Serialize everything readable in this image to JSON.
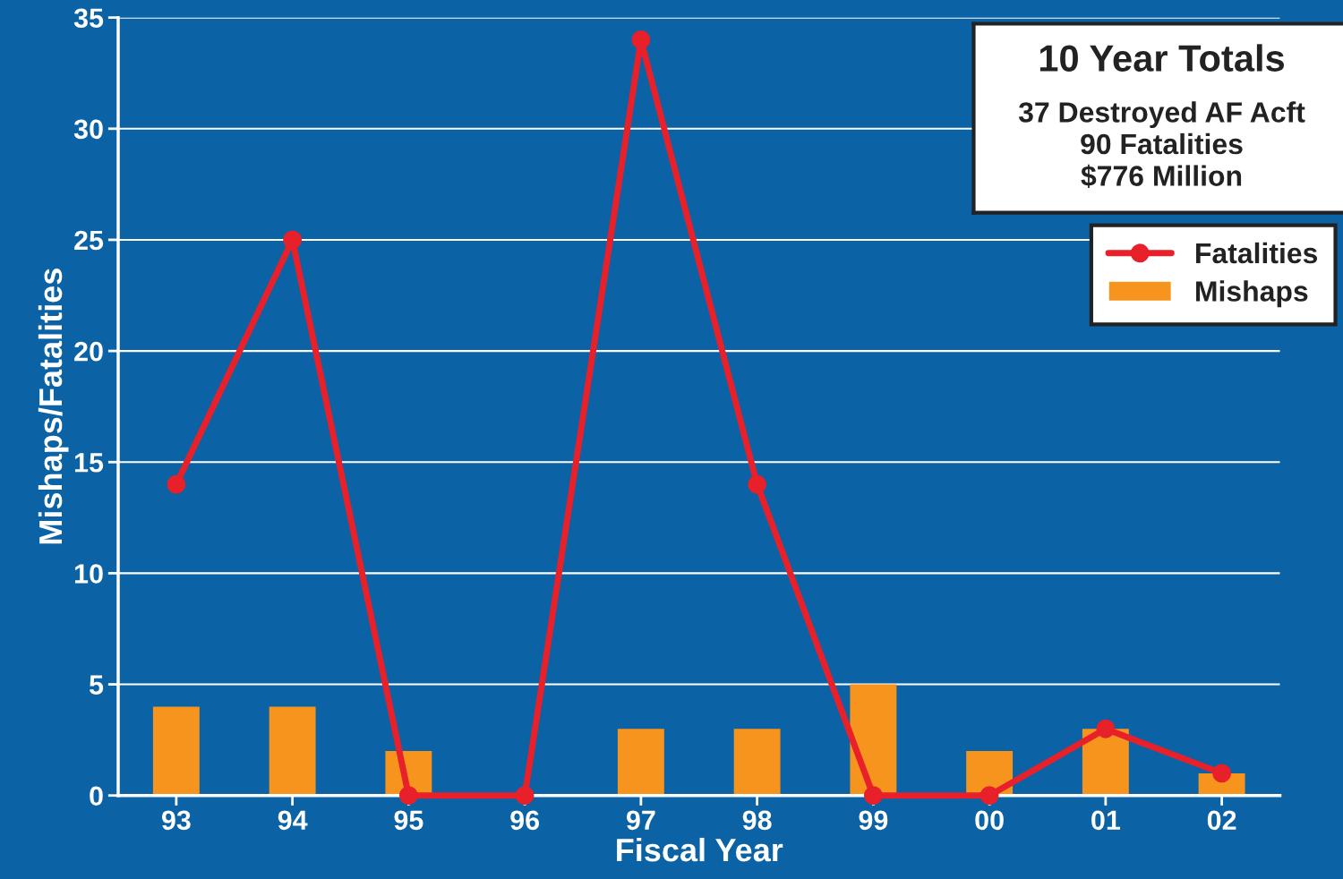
{
  "chart_data": {
    "type": "bar",
    "xlabel": "Fiscal Year",
    "ylabel": "Mishaps/Fatalities",
    "categories": [
      "93",
      "94",
      "95",
      "96",
      "97",
      "98",
      "99",
      "00",
      "01",
      "02"
    ],
    "series": [
      {
        "name": "Fatalities",
        "type": "line",
        "color": "#e8202a",
        "marker": "circle",
        "values": [
          14,
          25,
          0,
          0,
          34,
          14,
          0,
          0,
          3,
          1
        ]
      },
      {
        "name": "Mishaps",
        "color": "#f7941d",
        "values": [
          4,
          4,
          2,
          0,
          3,
          3,
          5,
          2,
          3,
          1
        ]
      }
    ],
    "ylim": [
      0,
      35
    ],
    "yticks": [
      0,
      5,
      10,
      15,
      20,
      25,
      30,
      35
    ],
    "grid": "y",
    "legend": "top right",
    "legend_title": "10 Year Totals",
    "annotations": [
      "37 Destroyed AF Acft",
      "90 Fatalities",
      "$776 Million"
    ]
  }
}
